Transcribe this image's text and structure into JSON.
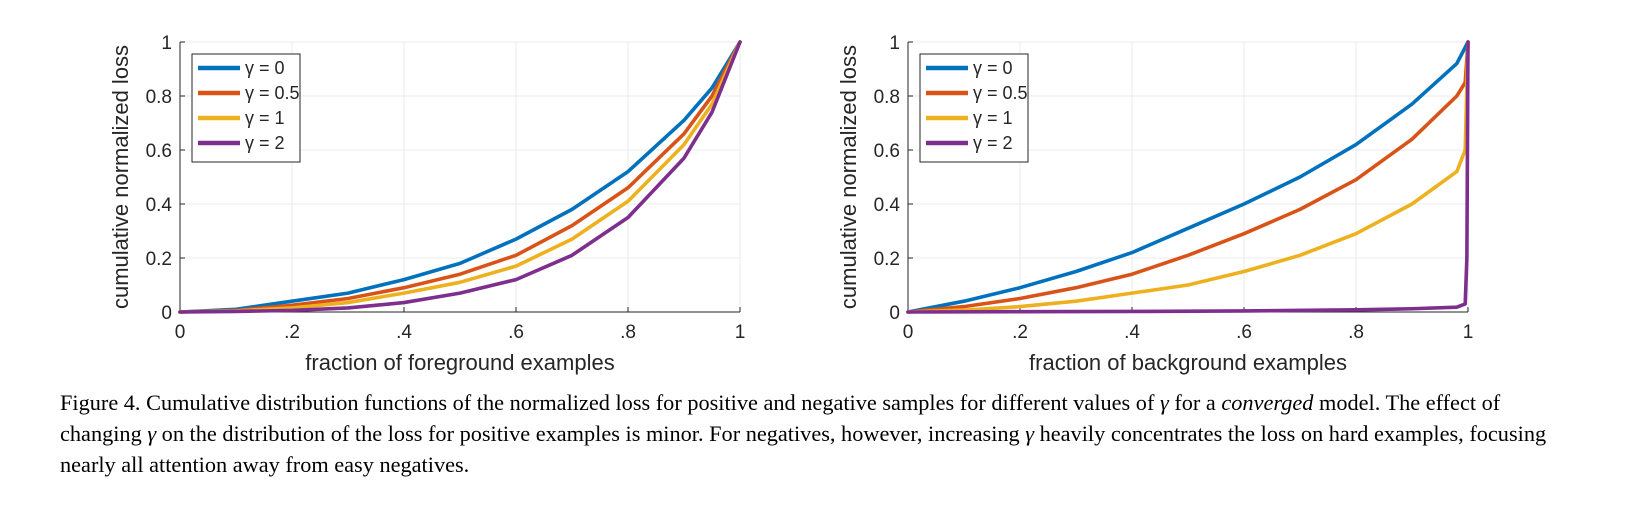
{
  "chart_data": [
    {
      "type": "line",
      "xlabel": "fraction of foreground examples",
      "ylabel": "cumulative normalized loss",
      "xlim": [
        0,
        1
      ],
      "ylim": [
        0,
        1
      ],
      "xticks": [
        0,
        0.2,
        0.4,
        0.6,
        0.8,
        1
      ],
      "xtick_labels": [
        "0",
        ".2",
        ".4",
        ".6",
        ".8",
        "1"
      ],
      "yticks": [
        0,
        0.2,
        0.4,
        0.6,
        0.8,
        1
      ],
      "ytick_labels": [
        "0",
        "0.2",
        "0.4",
        "0.6",
        "0.8",
        "1"
      ],
      "grid": true,
      "legend_position": "top-left",
      "series": [
        {
          "name": "γ = 0",
          "color": "#0072BD",
          "x": [
            0,
            0.1,
            0.2,
            0.3,
            0.4,
            0.5,
            0.6,
            0.7,
            0.8,
            0.9,
            0.95,
            1
          ],
          "y": [
            0,
            0.01,
            0.04,
            0.07,
            0.12,
            0.18,
            0.27,
            0.38,
            0.52,
            0.71,
            0.83,
            1
          ]
        },
        {
          "name": "γ = 0.5",
          "color": "#D95319",
          "x": [
            0,
            0.1,
            0.2,
            0.3,
            0.4,
            0.5,
            0.6,
            0.7,
            0.8,
            0.9,
            0.95,
            1
          ],
          "y": [
            0,
            0.006,
            0.025,
            0.05,
            0.09,
            0.14,
            0.21,
            0.32,
            0.46,
            0.66,
            0.8,
            1
          ]
        },
        {
          "name": "γ = 1",
          "color": "#EDB120",
          "x": [
            0,
            0.1,
            0.2,
            0.3,
            0.4,
            0.5,
            0.6,
            0.7,
            0.8,
            0.9,
            0.95,
            1
          ],
          "y": [
            0,
            0.004,
            0.015,
            0.035,
            0.07,
            0.11,
            0.17,
            0.27,
            0.41,
            0.62,
            0.77,
            1
          ]
        },
        {
          "name": "γ = 2",
          "color": "#7E2F8E",
          "x": [
            0,
            0.1,
            0.2,
            0.3,
            0.4,
            0.5,
            0.6,
            0.7,
            0.8,
            0.9,
            0.95,
            1
          ],
          "y": [
            0,
            0.002,
            0.006,
            0.015,
            0.035,
            0.07,
            0.12,
            0.21,
            0.35,
            0.57,
            0.74,
            1
          ]
        }
      ]
    },
    {
      "type": "line",
      "xlabel": "fraction of background examples",
      "ylabel": "cumulative normalized loss",
      "xlim": [
        0,
        1
      ],
      "ylim": [
        0,
        1
      ],
      "xticks": [
        0,
        0.2,
        0.4,
        0.6,
        0.8,
        1
      ],
      "xtick_labels": [
        "0",
        ".2",
        ".4",
        ".6",
        ".8",
        "1"
      ],
      "yticks": [
        0,
        0.2,
        0.4,
        0.6,
        0.8,
        1
      ],
      "ytick_labels": [
        "0",
        "0.2",
        "0.4",
        "0.6",
        "0.8",
        "1"
      ],
      "grid": true,
      "legend_position": "top-left",
      "series": [
        {
          "name": "γ = 0",
          "color": "#0072BD",
          "x": [
            0,
            0.1,
            0.2,
            0.3,
            0.4,
            0.5,
            0.6,
            0.7,
            0.8,
            0.9,
            0.98,
            1
          ],
          "y": [
            0,
            0.04,
            0.09,
            0.15,
            0.22,
            0.31,
            0.4,
            0.5,
            0.62,
            0.77,
            0.92,
            1
          ]
        },
        {
          "name": "γ = 0.5",
          "color": "#D95319",
          "x": [
            0,
            0.1,
            0.2,
            0.3,
            0.4,
            0.5,
            0.6,
            0.7,
            0.8,
            0.9,
            0.98,
            0.995,
            1
          ],
          "y": [
            0,
            0.02,
            0.05,
            0.09,
            0.14,
            0.21,
            0.29,
            0.38,
            0.49,
            0.64,
            0.8,
            0.85,
            1
          ]
        },
        {
          "name": "γ = 1",
          "color": "#EDB120",
          "x": [
            0,
            0.1,
            0.2,
            0.3,
            0.4,
            0.5,
            0.6,
            0.7,
            0.8,
            0.9,
            0.98,
            0.995,
            1
          ],
          "y": [
            0,
            0.007,
            0.02,
            0.04,
            0.07,
            0.1,
            0.15,
            0.21,
            0.29,
            0.4,
            0.52,
            0.6,
            1
          ]
        },
        {
          "name": "γ = 2",
          "color": "#7E2F8E",
          "x": [
            0,
            0.2,
            0.4,
            0.6,
            0.8,
            0.9,
            0.98,
            0.995,
            0.998,
            1
          ],
          "y": [
            0,
            0.001,
            0.002,
            0.004,
            0.008,
            0.012,
            0.018,
            0.03,
            0.2,
            1
          ]
        }
      ]
    }
  ],
  "caption": {
    "label": "Figure 4.",
    "text_1": " Cumulative distribution functions of the normalized loss for positive and negative samples for different values of ",
    "gamma_1": "γ",
    "text_2": " for a ",
    "emph": "converged",
    "text_3": " model. The effect of changing ",
    "gamma_2": "γ",
    "text_4": " on the distribution of the loss for positive examples is minor. For negatives, however, increasing ",
    "gamma_3": "γ",
    "text_5": " heavily concentrates the loss on hard examples, focusing nearly all attention away from easy negatives."
  }
}
